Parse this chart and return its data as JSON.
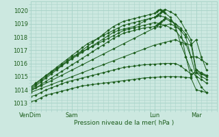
{
  "bg_color": "#cce8e0",
  "grid_color": "#aad4ca",
  "line_color": "#1a5c1a",
  "marker_color": "#1a5c1a",
  "xlabel": "Pression niveau de la mer( hPa )",
  "ylim": [
    1012.5,
    1020.7
  ],
  "yticks": [
    1013,
    1014,
    1015,
    1016,
    1017,
    1018,
    1019,
    1020
  ],
  "xtick_labels": [
    "VenDim",
    "Sam",
    "Lun",
    "Mar"
  ],
  "xtick_positions": [
    0,
    24,
    72,
    96
  ],
  "x_max": 108,
  "lines": [
    {
      "x": [
        0,
        3,
        6,
        9,
        12,
        15,
        18,
        21,
        24,
        27,
        30,
        33,
        36,
        39,
        42,
        45,
        48,
        51,
        54,
        57,
        60,
        63,
        66,
        69,
        72,
        75,
        78,
        81,
        84,
        87,
        90,
        93,
        96,
        99,
        102
      ],
      "y": [
        1013.1,
        1013.2,
        1013.4,
        1013.6,
        1013.7,
        1013.8,
        1013.9,
        1014.0,
        1014.1,
        1014.2,
        1014.3,
        1014.35,
        1014.4,
        1014.45,
        1014.5,
        1014.55,
        1014.6,
        1014.65,
        1014.7,
        1014.75,
        1014.8,
        1014.85,
        1014.9,
        1014.92,
        1014.95,
        1014.97,
        1015.0,
        1015.0,
        1015.0,
        1014.98,
        1014.95,
        1014.9,
        1014.0,
        1013.9,
        1013.8
      ]
    },
    {
      "x": [
        0,
        3,
        6,
        9,
        12,
        15,
        18,
        21,
        24,
        27,
        30,
        33,
        36,
        39,
        42,
        45,
        48,
        51,
        54,
        57,
        60,
        63,
        66,
        69,
        72,
        75,
        78,
        81,
        84,
        87,
        90,
        93,
        96,
        99,
        102
      ],
      "y": [
        1013.5,
        1013.6,
        1013.8,
        1014.0,
        1014.15,
        1014.3,
        1014.45,
        1014.6,
        1014.7,
        1014.8,
        1014.9,
        1015.0,
        1015.1,
        1015.2,
        1015.3,
        1015.4,
        1015.5,
        1015.6,
        1015.7,
        1015.75,
        1015.8,
        1015.85,
        1015.9,
        1015.92,
        1015.95,
        1015.97,
        1016.0,
        1016.0,
        1016.0,
        1015.8,
        1015.5,
        1015.2,
        1015.3,
        1015.2,
        1015.1
      ]
    },
    {
      "x": [
        0,
        6,
        12,
        18,
        24,
        30,
        36,
        42,
        48,
        54,
        60,
        66,
        72,
        75,
        78,
        81,
        84,
        87,
        90,
        93,
        96,
        99,
        102
      ],
      "y": [
        1013.8,
        1014.1,
        1014.4,
        1014.7,
        1015.0,
        1015.3,
        1015.6,
        1015.9,
        1016.2,
        1016.5,
        1016.8,
        1017.1,
        1017.4,
        1017.5,
        1017.6,
        1017.7,
        1017.8,
        1017.6,
        1017.5,
        1017.4,
        1017.8,
        1016.5,
        1015.5
      ]
    },
    {
      "x": [
        0,
        6,
        12,
        18,
        24,
        30,
        36,
        42,
        48,
        54,
        60,
        66,
        72,
        75,
        78,
        81,
        84,
        87,
        90,
        93,
        96,
        99,
        102
      ],
      "y": [
        1014.0,
        1014.3,
        1014.7,
        1015.1,
        1015.5,
        1015.9,
        1016.3,
        1016.7,
        1017.1,
        1017.5,
        1017.9,
        1018.3,
        1018.7,
        1018.8,
        1018.9,
        1019.0,
        1018.8,
        1018.5,
        1018.0,
        1016.5,
        1015.0,
        1014.2,
        1013.8
      ]
    },
    {
      "x": [
        0,
        3,
        6,
        9,
        12,
        15,
        18,
        21,
        24,
        27,
        30,
        33,
        36,
        39,
        42,
        45,
        48,
        51,
        54,
        57,
        60,
        63,
        66,
        69,
        72,
        75,
        78,
        81,
        84,
        87,
        90,
        93,
        96,
        99,
        102
      ],
      "y": [
        1014.1,
        1014.4,
        1014.7,
        1015.0,
        1015.3,
        1015.6,
        1015.9,
        1016.2,
        1016.5,
        1016.7,
        1016.9,
        1017.1,
        1017.3,
        1017.5,
        1017.7,
        1017.9,
        1018.1,
        1018.3,
        1018.5,
        1018.6,
        1018.7,
        1018.8,
        1018.9,
        1019.0,
        1019.1,
        1019.0,
        1018.9,
        1018.7,
        1018.5,
        1018.0,
        1017.5,
        1016.5,
        1016.5,
        1016.3,
        1016.0
      ]
    },
    {
      "x": [
        0,
        3,
        6,
        9,
        12,
        15,
        18,
        21,
        24,
        27,
        30,
        33,
        36,
        39,
        42,
        45,
        48,
        51,
        54,
        57,
        60,
        63,
        66,
        69,
        72,
        75,
        78,
        81,
        84,
        87,
        90,
        93,
        96,
        99,
        102
      ],
      "y": [
        1014.2,
        1014.5,
        1014.8,
        1015.1,
        1015.35,
        1015.6,
        1015.85,
        1016.1,
        1016.35,
        1016.6,
        1016.85,
        1017.1,
        1017.35,
        1017.6,
        1017.85,
        1018.1,
        1018.35,
        1018.5,
        1018.6,
        1018.7,
        1018.8,
        1019.0,
        1019.2,
        1019.4,
        1019.5,
        1019.6,
        1019.5,
        1019.3,
        1019.0,
        1018.5,
        1016.5,
        1015.0,
        1015.5,
        1015.3,
        1015.1
      ]
    },
    {
      "x": [
        0,
        3,
        6,
        9,
        12,
        15,
        18,
        21,
        24,
        27,
        30,
        33,
        36,
        39,
        42,
        45,
        48,
        51,
        54,
        57,
        60,
        63,
        66,
        69,
        72,
        73,
        74,
        75,
        76,
        77,
        78,
        81,
        84,
        87,
        90,
        93,
        96,
        99,
        102
      ],
      "y": [
        1014.0,
        1014.3,
        1014.6,
        1014.9,
        1015.2,
        1015.5,
        1015.8,
        1016.1,
        1016.4,
        1016.7,
        1017.0,
        1017.3,
        1017.6,
        1017.9,
        1018.2,
        1018.5,
        1018.8,
        1019.0,
        1019.2,
        1019.3,
        1019.4,
        1019.5,
        1019.6,
        1019.7,
        1019.8,
        1019.9,
        1020.0,
        1020.1,
        1020.0,
        1019.9,
        1019.8,
        1019.5,
        1018.8,
        1017.5,
        1016.5,
        1015.5,
        1015.0,
        1014.8,
        1014.5
      ]
    },
    {
      "x": [
        0,
        3,
        6,
        9,
        12,
        15,
        18,
        21,
        24,
        27,
        30,
        33,
        36,
        39,
        42,
        45,
        48,
        51,
        54,
        57,
        60,
        63,
        66,
        69,
        72,
        73,
        74,
        75,
        76,
        77,
        78,
        81,
        84,
        87,
        90,
        93,
        96,
        99,
        102
      ],
      "y": [
        1014.2,
        1014.5,
        1014.8,
        1015.1,
        1015.4,
        1015.7,
        1016.0,
        1016.3,
        1016.6,
        1016.9,
        1017.2,
        1017.5,
        1017.7,
        1017.9,
        1018.1,
        1018.3,
        1018.5,
        1018.7,
        1018.9,
        1019.0,
        1019.1,
        1019.2,
        1019.3,
        1019.4,
        1019.5,
        1019.6,
        1019.7,
        1019.8,
        1019.9,
        1020.0,
        1020.1,
        1019.9,
        1019.7,
        1019.2,
        1018.5,
        1017.8,
        1015.5,
        1015.2,
        1015.0
      ]
    },
    {
      "x": [
        0,
        3,
        6,
        9,
        12,
        15,
        18,
        21,
        24,
        27,
        30,
        33,
        36,
        39,
        42,
        45,
        48,
        51,
        54,
        57,
        60,
        63,
        66,
        69,
        72,
        73,
        74,
        75,
        76,
        77,
        78,
        81,
        84,
        87,
        90,
        93,
        96,
        99,
        102
      ],
      "y": [
        1013.9,
        1014.15,
        1014.4,
        1014.65,
        1014.9,
        1015.15,
        1015.4,
        1015.65,
        1015.9,
        1016.15,
        1016.4,
        1016.65,
        1016.9,
        1017.15,
        1017.4,
        1017.65,
        1017.9,
        1018.1,
        1018.3,
        1018.4,
        1018.5,
        1018.6,
        1018.7,
        1018.75,
        1018.8,
        1018.9,
        1019.0,
        1019.1,
        1019.2,
        1019.3,
        1019.4,
        1019.2,
        1019.0,
        1018.7,
        1018.2,
        1017.5,
        1015.3,
        1015.0,
        1014.8
      ]
    }
  ]
}
